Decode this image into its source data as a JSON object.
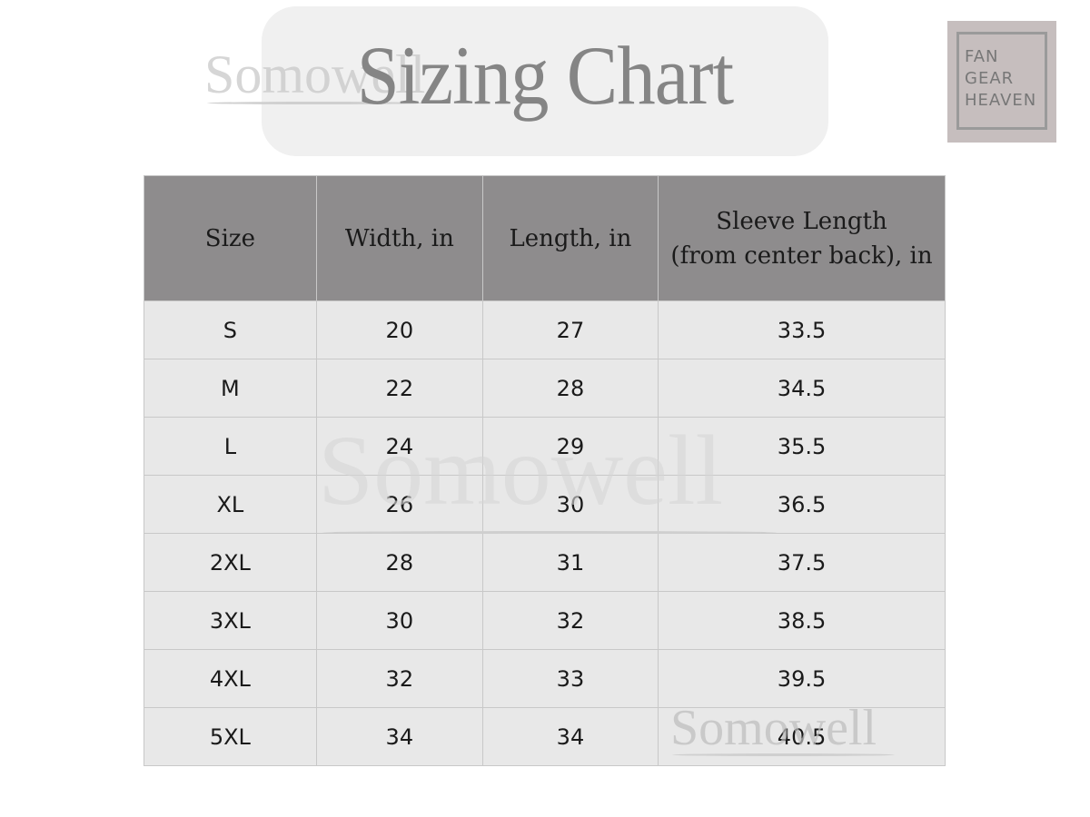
{
  "title": "Sizing Chart",
  "watermark": "Somowell",
  "logo": {
    "lines": [
      "FAN",
      "GEAR",
      "HEAVEN"
    ]
  },
  "table": {
    "headers": [
      "Size",
      "Width, in",
      "Length, in",
      "Sleeve Length",
      "(from center back), in"
    ],
    "rows": [
      [
        "S",
        "20",
        "27",
        "33.5"
      ],
      [
        "M",
        "22",
        "28",
        "34.5"
      ],
      [
        "L",
        "24",
        "29",
        "35.5"
      ],
      [
        "XL",
        "26",
        "30",
        "36.5"
      ],
      [
        "2XL",
        "28",
        "31",
        "37.5"
      ],
      [
        "3XL",
        "30",
        "32",
        "38.5"
      ],
      [
        "4XL",
        "32",
        "33",
        "39.5"
      ],
      [
        "5XL",
        "34",
        "34",
        "40.5"
      ]
    ]
  },
  "colors": {
    "header_bg": "#8e8c8d",
    "row_bg": "#e8e8e8",
    "title": "#858585",
    "logo_bg": "#c6bebe"
  }
}
